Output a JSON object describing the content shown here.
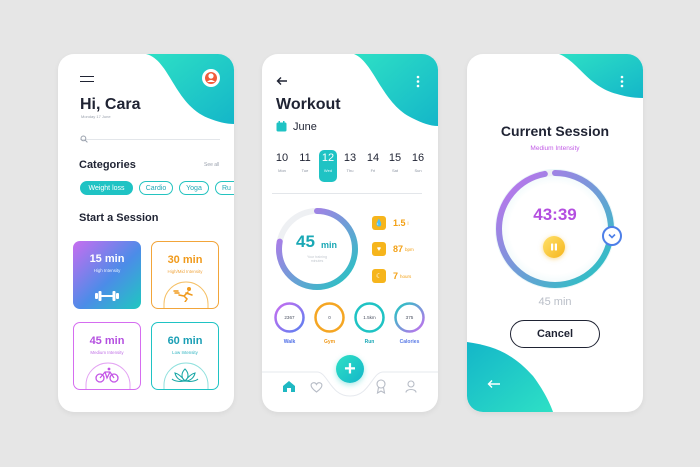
{
  "colors": {
    "teal": "#1ec8c0",
    "purple": "#c070f0",
    "orange": "#f3a014",
    "dark": "#1f2333"
  },
  "screen1": {
    "greeting": "Hi, Cara",
    "date": "Monday 17 June",
    "categories_title": "Categories",
    "see_all": "See all",
    "categories": [
      "Weight loss",
      "Cardio",
      "Yoga",
      "Ru"
    ],
    "sessions_title": "Start a Session",
    "sessions": [
      {
        "time": "15 min",
        "level": "High Intensity",
        "icon": "dumbbell-icon"
      },
      {
        "time": "30 min",
        "level": "High/Mid Intensity",
        "icon": "runner-icon"
      },
      {
        "time": "45 min",
        "level": "Medium Intensity",
        "icon": "bicycle-icon"
      },
      {
        "time": "60 min",
        "level": "Low Intensity",
        "icon": "lotus-icon"
      }
    ]
  },
  "screen2": {
    "title": "Workout",
    "month": "June",
    "days": [
      {
        "num": "10",
        "wd": "Mon"
      },
      {
        "num": "11",
        "wd": "Tue"
      },
      {
        "num": "12",
        "wd": "Wed"
      },
      {
        "num": "13",
        "wd": "Thu"
      },
      {
        "num": "14",
        "wd": "Fri"
      },
      {
        "num": "15",
        "wd": "Sat"
      },
      {
        "num": "16",
        "wd": "Sun"
      }
    ],
    "selected_day": "12",
    "ring": {
      "value": "45",
      "unit": "min",
      "caption": "Your training minutes"
    },
    "stats": [
      {
        "value": "1.5",
        "unit": "l",
        "icon": "water-drop-icon"
      },
      {
        "value": "87",
        "unit": "bpm",
        "icon": "heart-icon"
      },
      {
        "value": "7",
        "unit": "hours",
        "icon": "moon-icon"
      }
    ],
    "metrics": [
      {
        "value": "2367",
        "label": "Walk"
      },
      {
        "value": "0",
        "label": "Gym"
      },
      {
        "value": "1.5km",
        "label": "Run"
      },
      {
        "value": "375",
        "label": "Calories"
      }
    ]
  },
  "screen3": {
    "title": "Current Session",
    "subtitle": "Medium Intensity",
    "timer": "43:39",
    "total": "45 min",
    "cancel_label": "Cancel",
    "progress": 0.97
  }
}
